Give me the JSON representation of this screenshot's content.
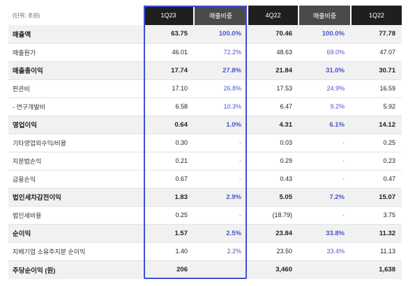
{
  "header": {
    "unit": "(단위: 조원)",
    "columns": [
      "1Q23",
      "매출비중",
      "4Q22",
      "매출비중",
      "1Q22"
    ]
  },
  "rows": [
    {
      "label": "매출액",
      "style": "bold",
      "v1": "63.75",
      "r1": "100.0%",
      "v2": "70.46",
      "r2": "100.0%",
      "v3": "77.78"
    },
    {
      "label": "매출원가",
      "style": "sub",
      "v1": "46.01",
      "r1": "72.2%",
      "v2": "48.63",
      "r2": "69.0%",
      "v3": "47.07"
    },
    {
      "label": "매출총이익",
      "style": "bold",
      "v1": "17.74",
      "r1": "27.8%",
      "v2": "21.84",
      "r2": "31.0%",
      "v3": "30.71"
    },
    {
      "label": "판관비",
      "style": "sub",
      "v1": "17.10",
      "r1": "26.8%",
      "v2": "17.53",
      "r2": "24.9%",
      "v3": "16.59"
    },
    {
      "label": "- 연구개발비",
      "style": "sub",
      "v1": "6.58",
      "r1": "10.3%",
      "v2": "6.47",
      "r2": "9.2%",
      "v3": "5.92"
    },
    {
      "label": "영업이익",
      "style": "bold",
      "v1": "0.64",
      "r1": "1.0%",
      "v2": "4.31",
      "r2": "6.1%",
      "v3": "14.12"
    },
    {
      "label": "기타영업외수익/비용",
      "style": "sub",
      "v1": "0.30",
      "r1": "-",
      "v2": "0.03",
      "r2": "-",
      "v3": "0.25"
    },
    {
      "label": "지분법손익",
      "style": "sub",
      "v1": "0.21",
      "r1": "-",
      "v2": "0.29",
      "r2": "-",
      "v3": "0.23"
    },
    {
      "label": "금융손익",
      "style": "sub",
      "v1": "0.67",
      "r1": "-",
      "v2": "0.43",
      "r2": "-",
      "v3": "0.47"
    },
    {
      "label": "법인세차감전이익",
      "style": "bold",
      "v1": "1.83",
      "r1": "2.9%",
      "v2": "5.05",
      "r2": "7.2%",
      "v3": "15.07"
    },
    {
      "label": "법인세비용",
      "style": "sub",
      "v1": "0.25",
      "r1": "-",
      "v2": "(18.79)",
      "r2": "-",
      "v3": "3.75"
    },
    {
      "label": "순이익",
      "style": "bold",
      "v1": "1.57",
      "r1": "2.5%",
      "v2": "23.84",
      "r2": "33.8%",
      "v3": "11.32"
    },
    {
      "label": "지배기업 소유주지분 순이익",
      "style": "sub",
      "v1": "1.40",
      "r1": "2.2%",
      "v2": "23.50",
      "r2": "33.4%",
      "v3": "11.13"
    },
    {
      "label": "주당순이익 (원)",
      "style": "bold",
      "v1": "206",
      "r1": "",
      "v2": "3,460",
      "r2": "",
      "v3": "1,638"
    }
  ],
  "colors": {
    "header_bg": "#1f1f1f",
    "ratio_header_bg": "#4a4a4a",
    "ratio_text": "#4a56c9",
    "highlight_border": "#3f4fd6",
    "bold_row_bg": "#f1f1f1"
  }
}
